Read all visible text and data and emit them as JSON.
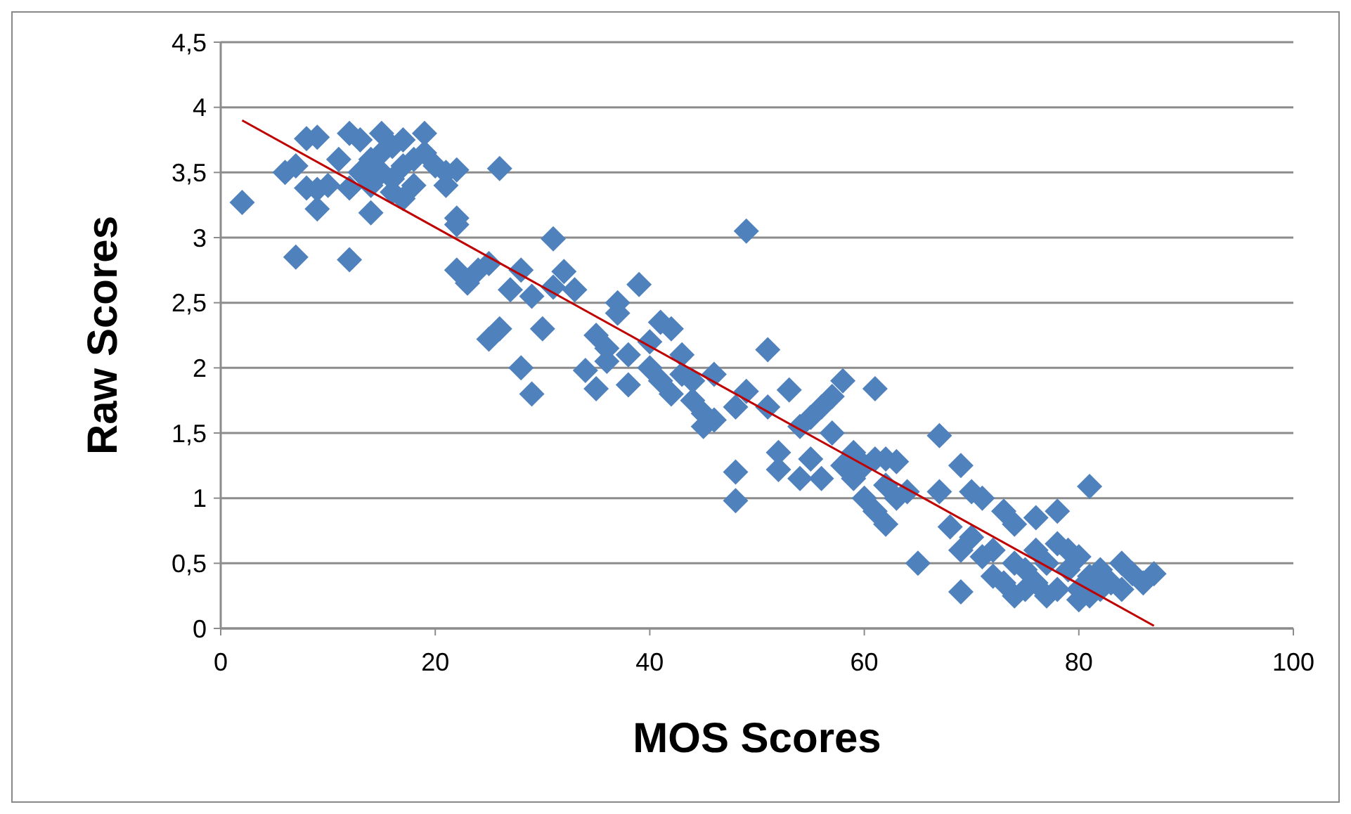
{
  "chart_data": {
    "type": "scatter",
    "xlabel": "MOS Scores",
    "ylabel": "Raw Scores",
    "xlim": [
      0,
      100
    ],
    "xticks": [
      0,
      20,
      40,
      60,
      80,
      100
    ],
    "ylim": [
      0,
      4.5
    ],
    "yticks": [
      {
        "value": 0,
        "label": "0"
      },
      {
        "value": 0.5,
        "label": "0,5"
      },
      {
        "value": 1,
        "label": "1"
      },
      {
        "value": 1.5,
        "label": "1,5"
      },
      {
        "value": 2,
        "label": "2"
      },
      {
        "value": 2.5,
        "label": "2,5"
      },
      {
        "value": 3,
        "label": "3"
      },
      {
        "value": 3.5,
        "label": "3,5"
      },
      {
        "value": 4,
        "label": "4"
      },
      {
        "value": 4.5,
        "label": "4,5"
      }
    ],
    "grid": "y",
    "marker": "diamond",
    "series": [
      {
        "color": "#4f81bd",
        "x": [
          2,
          6,
          7,
          7,
          8,
          8,
          9,
          9,
          9,
          10,
          11,
          12,
          12,
          12,
          13,
          13,
          14,
          14,
          14,
          15,
          15,
          15,
          16,
          16,
          16,
          17,
          17,
          17,
          18,
          18,
          19,
          19,
          20,
          21,
          21,
          22,
          22,
          22,
          22,
          23,
          24,
          25,
          25,
          26,
          26,
          27,
          28,
          28,
          29,
          29,
          30,
          31,
          31,
          32,
          33,
          34,
          35,
          35,
          36,
          36,
          37,
          37,
          38,
          38,
          39,
          40,
          40,
          41,
          41,
          42,
          42,
          43,
          43,
          44,
          44,
          45,
          45,
          46,
          46,
          48,
          48,
          48,
          49,
          49,
          51,
          51,
          52,
          52,
          53,
          54,
          54,
          55,
          55,
          56,
          56,
          57,
          57,
          58,
          58,
          59,
          59,
          60,
          60,
          61,
          61,
          61,
          62,
          62,
          62,
          63,
          63,
          64,
          65,
          67,
          67,
          68,
          69,
          69,
          69,
          70,
          70,
          71,
          71,
          72,
          72,
          73,
          73,
          74,
          74,
          74,
          75,
          75,
          76,
          76,
          76,
          77,
          77,
          78,
          78,
          78,
          79,
          79,
          80,
          80,
          80,
          81,
          81,
          81,
          82,
          82,
          83,
          84,
          84,
          85,
          86,
          87
        ],
        "values": [
          3.27,
          3.5,
          3.55,
          2.85,
          3.38,
          3.76,
          3.22,
          3.37,
          3.77,
          3.4,
          3.6,
          3.8,
          3.38,
          2.83,
          3.75,
          3.5,
          3.6,
          3.19,
          3.4,
          3.8,
          3.65,
          3.5,
          3.7,
          3.45,
          3.35,
          3.75,
          3.55,
          3.3,
          3.6,
          3.4,
          3.8,
          3.65,
          3.55,
          3.4,
          3.5,
          3.52,
          3.15,
          3.1,
          2.75,
          2.65,
          2.75,
          2.22,
          2.8,
          2.3,
          3.53,
          2.6,
          2.75,
          2,
          1.8,
          2.55,
          2.3,
          2.99,
          2.62,
          2.74,
          2.6,
          1.98,
          2.25,
          1.84,
          2.05,
          2.15,
          2.5,
          2.42,
          2.1,
          1.87,
          2.64,
          2.2,
          2,
          2.35,
          1.9,
          2.3,
          1.8,
          2.1,
          1.95,
          1.75,
          1.9,
          1.55,
          1.65,
          1.95,
          1.6,
          1.2,
          0.98,
          1.7,
          1.82,
          3.05,
          2.14,
          1.7,
          1.35,
          1.22,
          1.83,
          1.15,
          1.55,
          1.3,
          1.62,
          1.7,
          1.15,
          1.5,
          1.78,
          1.9,
          1.25,
          1.35,
          1.15,
          1.25,
          1,
          1.3,
          0.9,
          1.84,
          0.8,
          1.1,
          1.3,
          1.28,
          1,
          1.05,
          0.5,
          1.48,
          1.05,
          0.78,
          0.28,
          0.6,
          1.25,
          1.05,
          0.7,
          1,
          0.55,
          0.6,
          0.4,
          0.9,
          0.35,
          0.5,
          0.25,
          0.8,
          0.45,
          0.3,
          0.6,
          0.85,
          0.35,
          0.5,
          0.25,
          0.9,
          0.65,
          0.3,
          0.45,
          0.6,
          0.55,
          0.3,
          0.22,
          1.09,
          0.4,
          0.25,
          0.45,
          0.3,
          0.35,
          0.5,
          0.3,
          0.42,
          0.35,
          0.42
        ]
      },
      {
        "type": "line",
        "color": "#c00000",
        "marker": "none",
        "x": [
          2,
          87
        ],
        "values": [
          3.9,
          0.02
        ]
      }
    ]
  }
}
